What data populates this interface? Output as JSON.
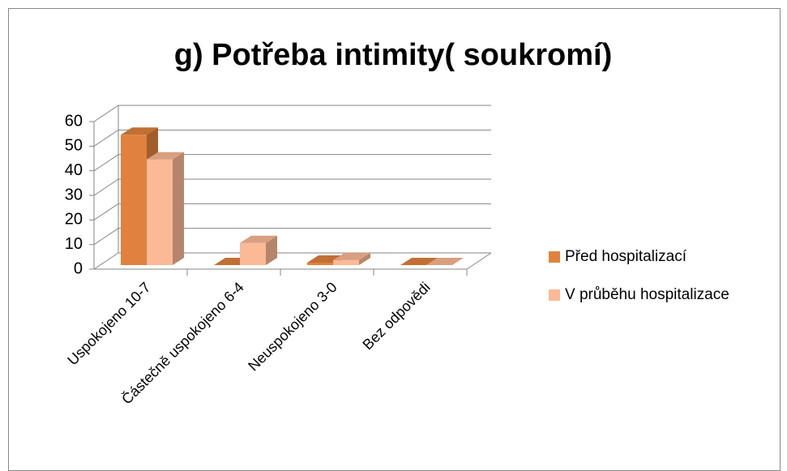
{
  "chart_data": {
    "type": "bar3d",
    "title": "g) Potřeba intimity( soukromí)",
    "categories": [
      "Uspokojeno 10-7",
      "Částečně uspokojeno 6-4",
      "Neuspokojeno 3-0",
      "Bez odpovědi"
    ],
    "series": [
      {
        "name": "Před hospitalizací",
        "color": "#e0823d",
        "values": [
          53,
          0,
          1,
          0
        ]
      },
      {
        "name": "V průběhu hospitalizace",
        "color": "#fbb995",
        "values": [
          43,
          9,
          2,
          0
        ]
      }
    ],
    "ylim": [
      0,
      60
    ],
    "yticks": [
      0,
      10,
      20,
      30,
      40,
      50,
      60
    ],
    "grid": true,
    "legend": "right"
  }
}
